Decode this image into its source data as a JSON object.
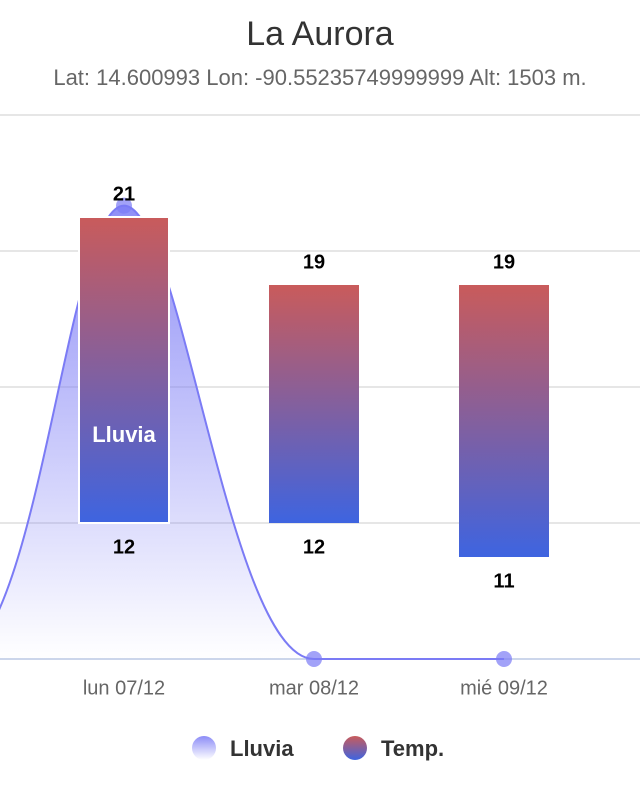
{
  "chart_data": {
    "type": "columnrange",
    "title": "La Aurora",
    "subtitle": "Lat: 14.600993 Lon: -90.55235749999999 Alt: 1503 m.",
    "categories": [
      "lun 07/12",
      "mar 08/12",
      "mié 09/12"
    ],
    "ylim": [
      8,
      24
    ],
    "yticks": [
      8,
      12,
      16,
      20,
      24
    ],
    "grid": true,
    "y2lim": [
      0,
      12
    ],
    "series": [
      {
        "name": "Lluvia",
        "type": "area",
        "axis": "y2",
        "color": "#7b7bf5",
        "values": [
          10,
          0,
          0
        ]
      },
      {
        "name": "Temp.",
        "type": "columnrange",
        "colors": [
          "#c95b5b",
          "#3e64e0"
        ],
        "low": [
          12,
          12,
          11
        ],
        "high": [
          21,
          19,
          19
        ]
      }
    ]
  }
}
